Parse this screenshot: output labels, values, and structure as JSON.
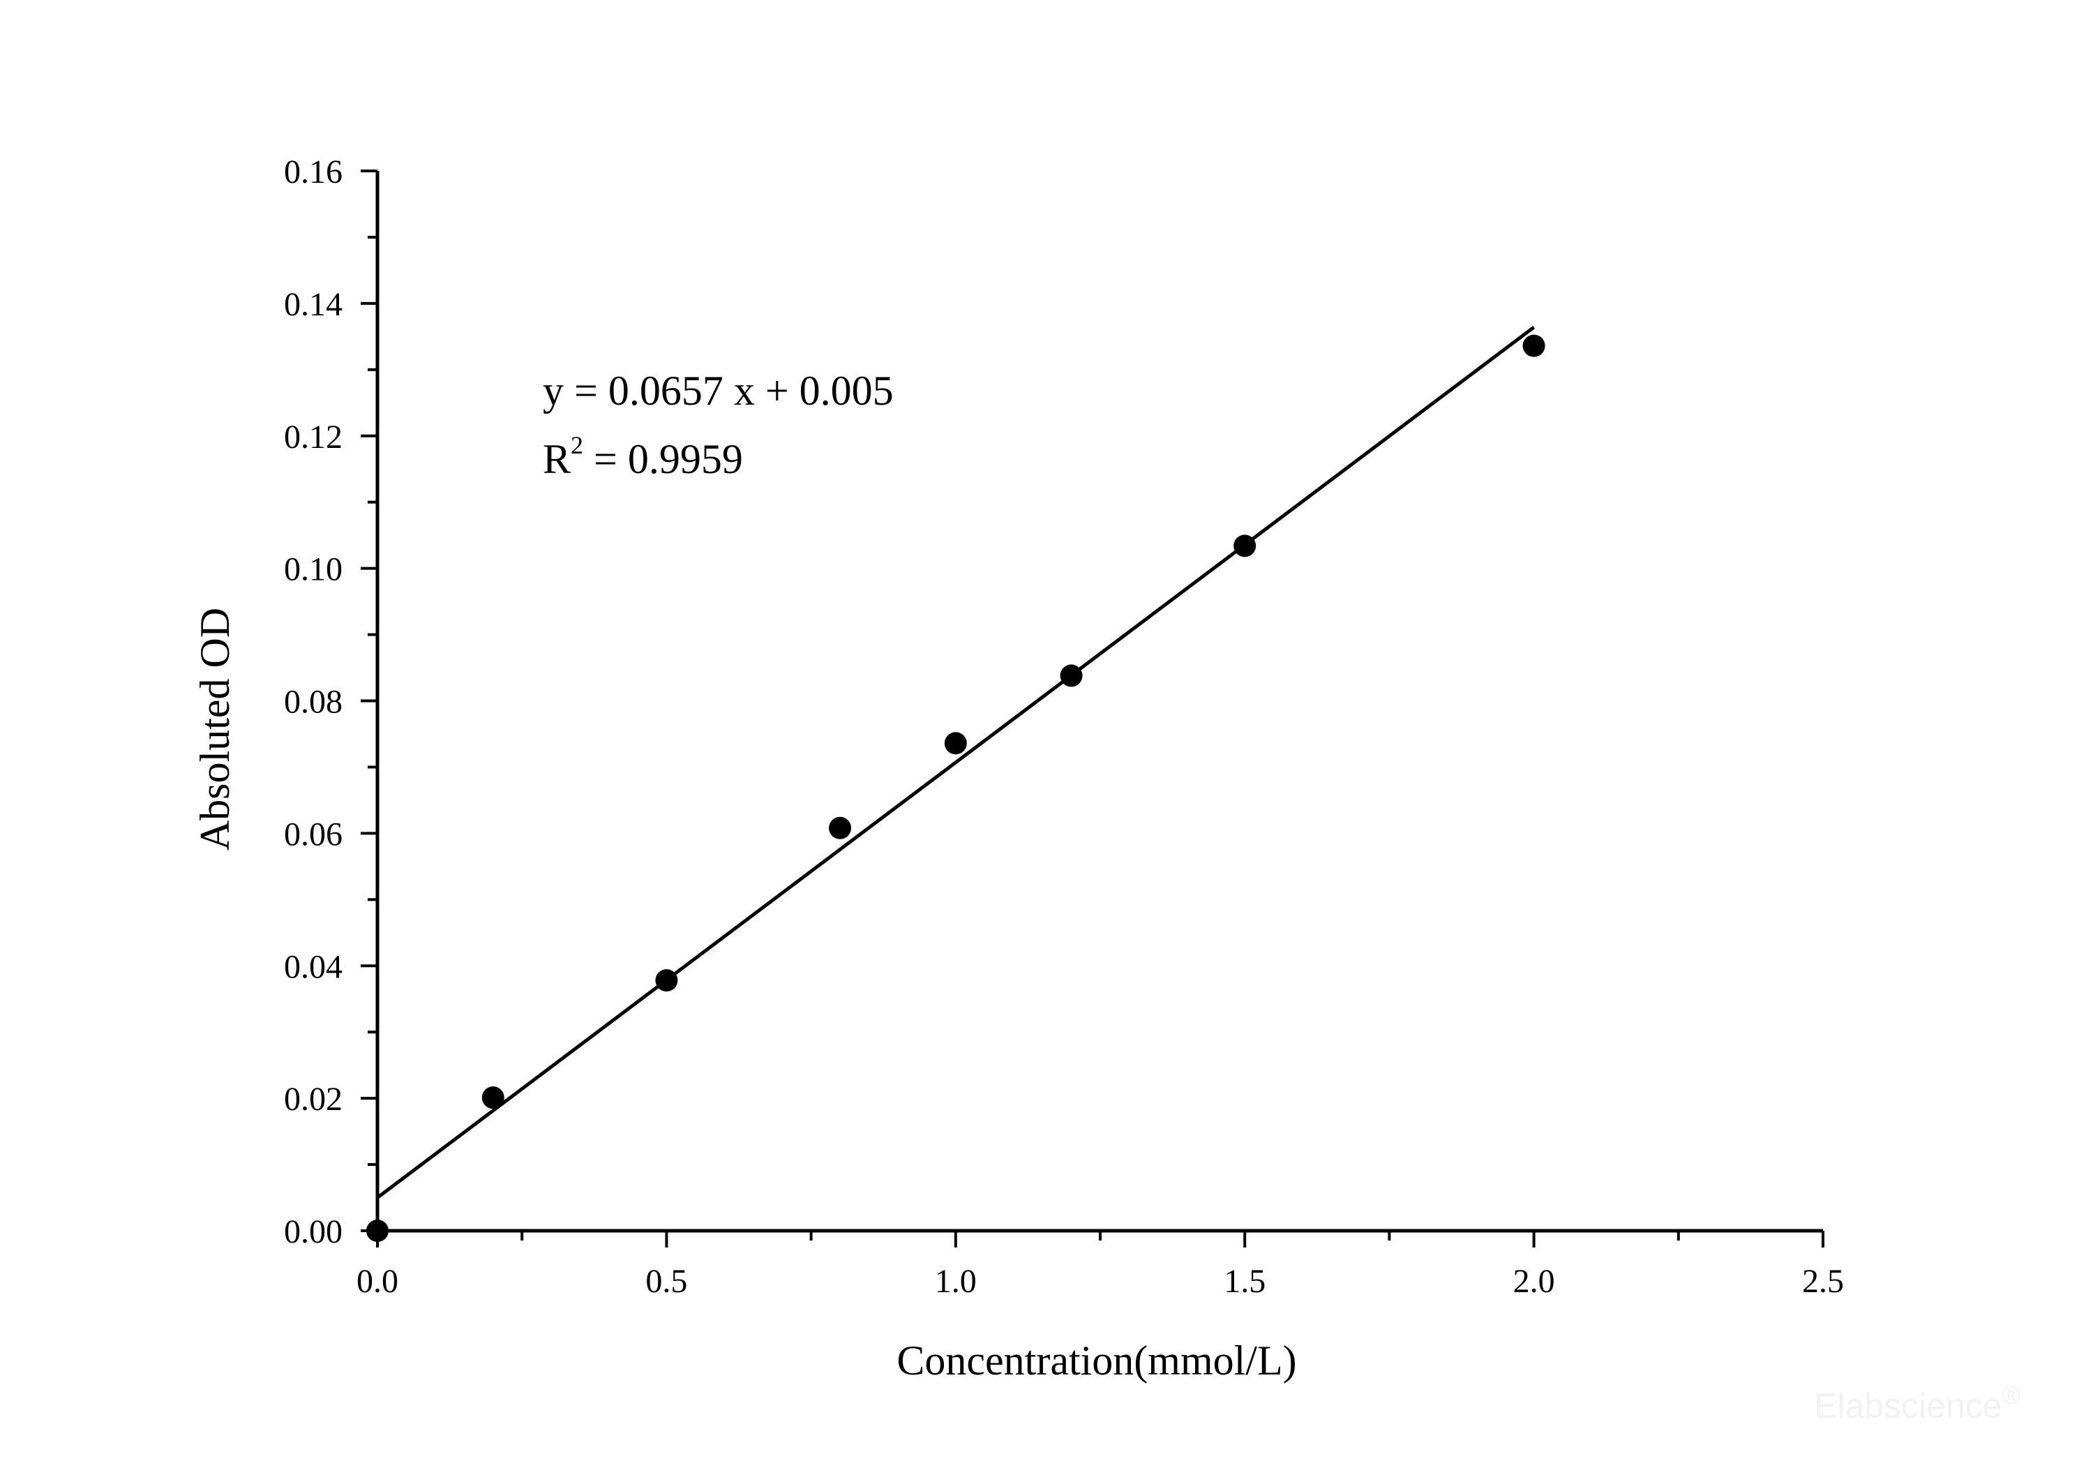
{
  "chart_data": {
    "type": "scatter",
    "xlabel": "Concentration(mmol/L)",
    "ylabel": "Absoluted OD",
    "xlim": [
      0,
      2.5
    ],
    "ylim": [
      0,
      0.16
    ],
    "x_ticks": [
      "0.0",
      "0.5",
      "1.0",
      "1.5",
      "2.0",
      "2.5"
    ],
    "y_ticks": [
      "0.00",
      "0.02",
      "0.04",
      "0.06",
      "0.08",
      "0.10",
      "0.12",
      "0.14",
      "0.16"
    ],
    "grid": false,
    "series": [
      {
        "x": [
          0,
          0.2,
          0.5,
          0.8,
          1.0,
          1.2,
          1.5,
          2.0
        ],
        "y": [
          0.0,
          0.0201,
          0.0378,
          0.0608,
          0.0736,
          0.0838,
          0.1034,
          0.1336
        ]
      }
    ],
    "fit": {
      "slope": 0.0657,
      "intercept": 0.005,
      "x_range": [
        0,
        2.0
      ]
    },
    "annotations": {
      "equation": "y = 0.0657 x + 0.005",
      "r_prefix": "R",
      "r_sup": "2",
      "r_value": " = 0.9959"
    },
    "watermark": "Elabscience",
    "watermark_mark": "®"
  }
}
